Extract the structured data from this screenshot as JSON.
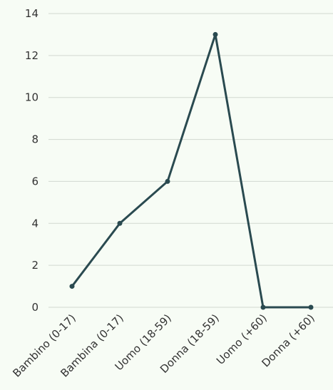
{
  "chart_data": {
    "type": "line",
    "categories": [
      "Bambino (0-17)",
      "Bambina (0-17)",
      "Uomo (18-59)",
      "Donna (18-59)",
      "Uomo (+60)",
      "Donna (+60)"
    ],
    "series": [
      {
        "values": [
          1,
          4,
          6,
          13,
          0,
          0
        ]
      }
    ],
    "ylim": [
      0,
      14
    ],
    "yticks": [
      0,
      2,
      4,
      6,
      8,
      10,
      12,
      14
    ],
    "grid": true,
    "colors": {
      "line": "#2a4a50",
      "grid": "#d2d8d0",
      "background": "#f7fcf5"
    }
  }
}
